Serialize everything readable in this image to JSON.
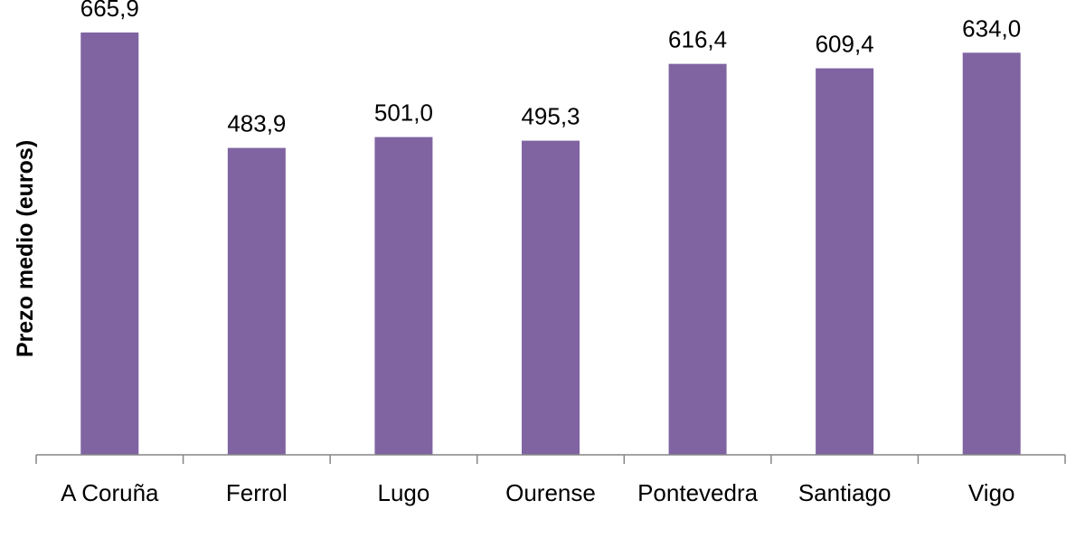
{
  "chart_data": {
    "type": "bar",
    "title": "",
    "xlabel": "",
    "ylabel": "Prezo medio (euros)",
    "categories": [
      "A Coruña",
      "Ferrol",
      "Lugo",
      "Ourense",
      "Pontevedra",
      "Santiago",
      "Vigo"
    ],
    "values": [
      665.9,
      483.9,
      501.0,
      495.3,
      616.4,
      609.4,
      634.0
    ],
    "value_labels": [
      "665,9",
      "483,9",
      "501,0",
      "495,3",
      "616,4",
      "609,4",
      "634,0"
    ],
    "ylim": [
      0,
      700
    ],
    "grid": false,
    "legend": "none",
    "bar_color": "#8064A2",
    "axis_color": "#868686"
  }
}
